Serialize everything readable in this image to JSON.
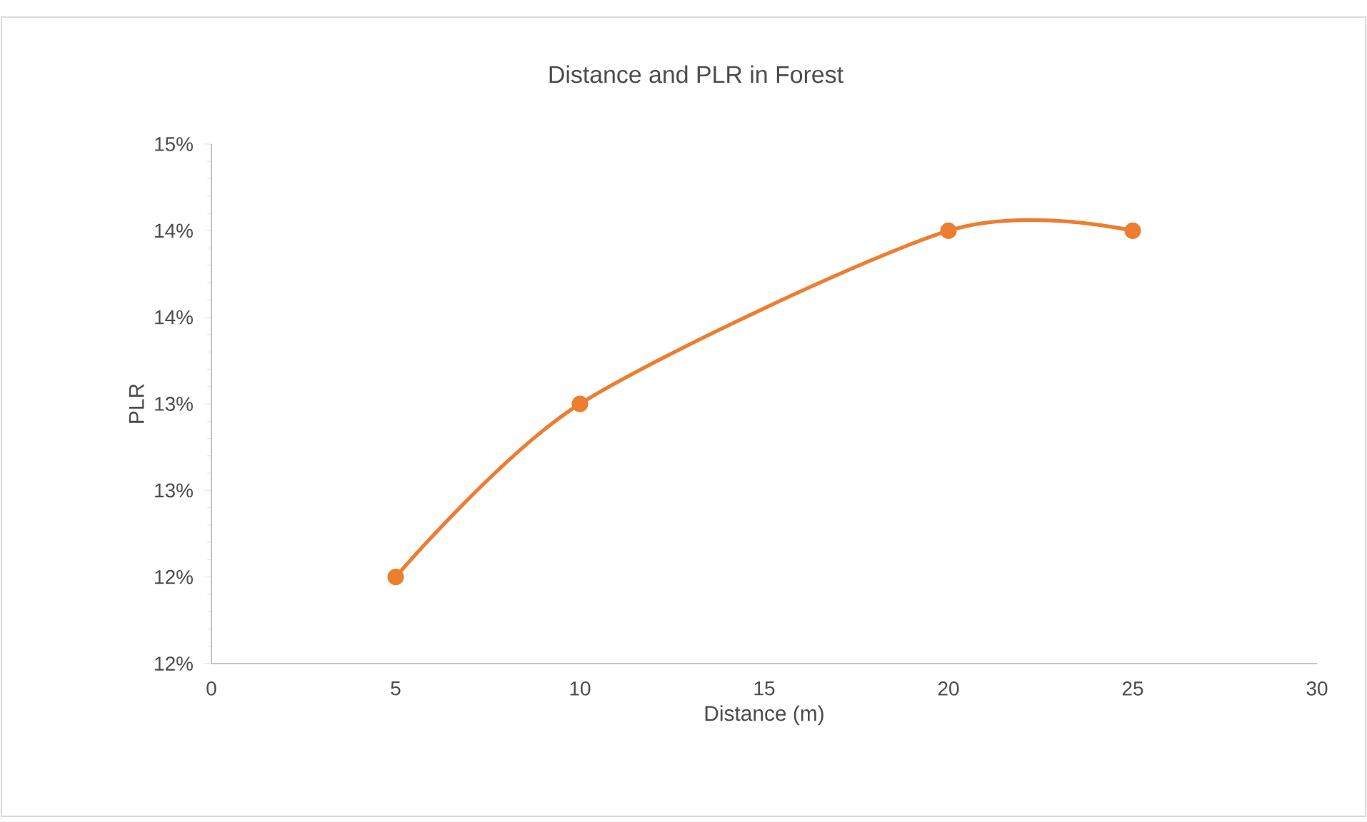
{
  "chart_data": {
    "type": "line",
    "title": "Distance and PLR  in Forest",
    "xlabel": "Distance (m)",
    "ylabel": "PLR",
    "x": [
      5,
      10,
      20,
      25
    ],
    "series": [
      {
        "color": "#ed7d31",
        "values": [
          12.5,
          13.5,
          14.5,
          14.5
        ]
      }
    ],
    "xlim": [
      0,
      30
    ],
    "xticks": [
      0,
      5,
      10,
      15,
      20,
      25,
      30
    ],
    "ylim": [
      12,
      15
    ],
    "yticks": [
      {
        "value": 12,
        "label": "12%"
      },
      {
        "value": 12.5,
        "label": "12%"
      },
      {
        "value": 13,
        "label": "13%"
      },
      {
        "value": 13.5,
        "label": "13%"
      },
      {
        "value": 14,
        "label": "14%"
      },
      {
        "value": 14.5,
        "label": "14%"
      },
      {
        "value": 15,
        "label": "15%"
      }
    ],
    "marker": "circle",
    "line_style": "solid"
  }
}
